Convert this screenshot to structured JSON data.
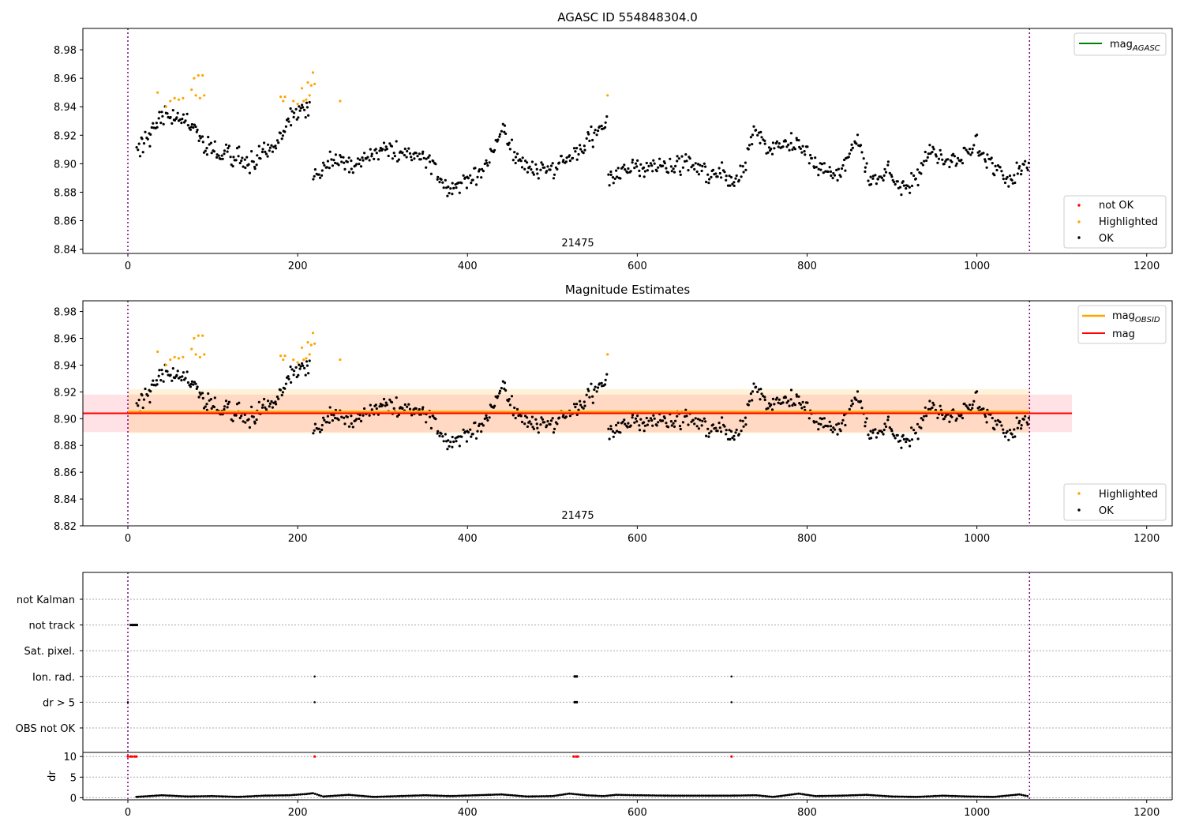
{
  "chart_data": [
    {
      "type": "scatter",
      "title": "AGASC ID 554848304.0",
      "xlabel": "",
      "ylabel": "",
      "xlim": [
        -53,
        1230
      ],
      "ylim": [
        8.837,
        8.995
      ],
      "xticks": [
        0,
        200,
        400,
        600,
        800,
        1000,
        1200
      ],
      "xtick_labels": [
        "0",
        "200",
        "400",
        "600",
        "800",
        "1000",
        "1200"
      ],
      "yticks": [
        8.84,
        8.86,
        8.88,
        8.9,
        8.92,
        8.94,
        8.96,
        8.98
      ],
      "ytick_labels": [
        "8.84",
        "8.86",
        "8.88",
        "8.90",
        "8.92",
        "8.94",
        "8.96",
        "8.98"
      ],
      "vlines": [
        0,
        1062
      ],
      "obsid_label": {
        "x": 530,
        "text": "21475"
      },
      "legend_upper": [
        {
          "label": "mag",
          "sub": "AGASC",
          "color": "#008000",
          "kind": "line"
        }
      ],
      "legend_lower": [
        {
          "label": "not OK",
          "color": "#ff0000",
          "kind": "dot"
        },
        {
          "label": "Highlighted",
          "color": "#ffa500",
          "kind": "dot"
        },
        {
          "label": "OK",
          "color": "#000000",
          "kind": "dot"
        }
      ],
      "series": [
        {
          "name": "OK",
          "color": "#000000",
          "segments": [
            {
              "x_range": [
                10,
                215
              ],
              "knots": [
                [
                  10,
                  8.912
                ],
                [
                  25,
                  8.918
                ],
                [
                  40,
                  8.935
                ],
                [
                  55,
                  8.934
                ],
                [
                  70,
                  8.928
                ],
                [
                  85,
                  8.918
                ],
                [
                  100,
                  8.912
                ],
                [
                  120,
                  8.905
                ],
                [
                  140,
                  8.902
                ],
                [
                  160,
                  8.906
                ],
                [
                  175,
                  8.912
                ],
                [
                  190,
                  8.932
                ],
                [
                  205,
                  8.938
                ],
                [
                  215,
                  8.94
                ]
              ],
              "noise": 0.005,
              "n": 160
            },
            {
              "x_range": [
                218,
                565
              ],
              "knots": [
                [
                  218,
                  8.888
                ],
                [
                  240,
                  8.903
                ],
                [
                  270,
                  8.899
                ],
                [
                  300,
                  8.913
                ],
                [
                  330,
                  8.905
                ],
                [
                  355,
                  8.905
                ],
                [
                  375,
                  8.882
                ],
                [
                  395,
                  8.884
                ],
                [
                  420,
                  8.896
                ],
                [
                  440,
                  8.923
                ],
                [
                  460,
                  8.903
                ],
                [
                  480,
                  8.895
                ],
                [
                  500,
                  8.897
                ],
                [
                  520,
                  8.904
                ],
                [
                  540,
                  8.914
                ],
                [
                  565,
                  8.927
                ]
              ],
              "noise": 0.005,
              "n": 260
            },
            {
              "x_range": [
                565,
                1062
              ],
              "knots": [
                [
                  565,
                  8.887
                ],
                [
                  590,
                  8.897
                ],
                [
                  620,
                  8.899
                ],
                [
                  650,
                  8.901
                ],
                [
                  680,
                  8.895
                ],
                [
                  700,
                  8.892
                ],
                [
                  720,
                  8.888
                ],
                [
                  740,
                  8.925
                ],
                [
                  755,
                  8.91
                ],
                [
                  775,
                  8.916
                ],
                [
                  790,
                  8.913
                ],
                [
                  820,
                  8.893
                ],
                [
                  840,
                  8.894
                ],
                [
                  860,
                  8.917
                ],
                [
                  875,
                  8.886
                ],
                [
                  895,
                  8.896
                ],
                [
                  910,
                  8.882
                ],
                [
                  930,
                  8.889
                ],
                [
                  945,
                  8.913
                ],
                [
                  960,
                  8.901
                ],
                [
                  980,
                  8.905
                ],
                [
                  1000,
                  8.912
                ],
                [
                  1020,
                  8.898
                ],
                [
                  1035,
                  8.888
                ],
                [
                  1050,
                  8.896
                ],
                [
                  1062,
                  8.898
                ]
              ],
              "noise": 0.005,
              "n": 370
            }
          ]
        },
        {
          "name": "Highlighted",
          "color": "#ffa500",
          "points": [
            [
              35,
              8.95
            ],
            [
              45,
              8.94
            ],
            [
              50,
              8.944
            ],
            [
              55,
              8.946
            ],
            [
              60,
              8.945
            ],
            [
              65,
              8.946
            ],
            [
              75,
              8.952
            ],
            [
              78,
              8.96
            ],
            [
              80,
              8.948
            ],
            [
              83,
              8.962
            ],
            [
              85,
              8.946
            ],
            [
              88,
              8.962
            ],
            [
              90,
              8.948
            ],
            [
              180,
              8.947
            ],
            [
              183,
              8.944
            ],
            [
              185,
              8.947
            ],
            [
              195,
              8.944
            ],
            [
              200,
              8.942
            ],
            [
              205,
              8.953
            ],
            [
              207,
              8.944
            ],
            [
              210,
              8.945
            ],
            [
              212,
              8.957
            ],
            [
              214,
              8.948
            ],
            [
              216,
              8.955
            ],
            [
              218,
              8.964
            ],
            [
              220,
              8.956
            ],
            [
              250,
              8.944
            ],
            [
              565,
              8.948
            ]
          ]
        }
      ]
    },
    {
      "type": "scatter",
      "title": "Magnitude Estimates",
      "xlabel": "",
      "ylabel": "",
      "xlim": [
        -53,
        1230
      ],
      "ylim": [
        8.82,
        8.988
      ],
      "xticks": [
        0,
        200,
        400,
        600,
        800,
        1000,
        1200
      ],
      "xtick_labels": [
        "0",
        "200",
        "400",
        "600",
        "800",
        "1000",
        "1200"
      ],
      "yticks": [
        8.82,
        8.84,
        8.86,
        8.88,
        8.9,
        8.92,
        8.94,
        8.96,
        8.98
      ],
      "ytick_labels": [
        "8.82",
        "8.84",
        "8.86",
        "8.88",
        "8.90",
        "8.92",
        "8.94",
        "8.96",
        "8.98"
      ],
      "vlines": [
        0,
        1062
      ],
      "obsid_label": {
        "x": 530,
        "text": "21475"
      },
      "legend_upper": [
        {
          "label": "mag",
          "sub": "OBSID",
          "color": "#ffa500",
          "kind": "line"
        },
        {
          "label": "mag",
          "sub": "",
          "color": "#ff0000",
          "kind": "line"
        }
      ],
      "legend_lower": [
        {
          "label": "Highlighted",
          "color": "#ffa500",
          "kind": "dot"
        },
        {
          "label": "OK",
          "color": "#000000",
          "kind": "dot"
        }
      ],
      "bands": [
        {
          "x": [
            -53,
            1112
          ],
          "y": [
            8.89,
            8.918
          ],
          "color": "#ffb6c1",
          "opacity": 0.4
        },
        {
          "x": [
            0,
            1062
          ],
          "y": [
            8.889,
            8.922
          ],
          "color": "#ffa500",
          "opacity": 0.15
        }
      ],
      "lines": [
        {
          "name": "mag OBSID",
          "x": [
            0,
            1062
          ],
          "y": 8.905,
          "color": "#ffa500",
          "width": 3
        },
        {
          "name": "mag",
          "x": [
            -53,
            1112
          ],
          "y": 8.904,
          "color": "#ff0000",
          "width": 2
        }
      ],
      "series": [
        {
          "name": "OK",
          "color": "#000000",
          "same_as_chart": 0
        },
        {
          "name": "Highlighted",
          "color": "#ffa500",
          "same_as_chart": 0
        }
      ]
    },
    {
      "type": "scatter",
      "title": "",
      "xlim": [
        -53,
        1230
      ],
      "xticks": [
        0,
        200,
        400,
        600,
        800,
        1000,
        1200
      ],
      "xtick_labels": [
        "0",
        "200",
        "400",
        "600",
        "800",
        "1000",
        "1200"
      ],
      "vlines": [
        0,
        1062
      ],
      "flag_rows": [
        "not Kalman",
        "not track",
        "Sat. pixel.",
        "Ion. rad.",
        "dr > 5",
        "OBS not OK"
      ],
      "flag_points": {
        "not track": [
          [
            2,
            12
          ]
        ],
        "Ion. rad.": [
          [
            220,
            220
          ],
          [
            525,
            530
          ],
          [
            711,
            711
          ]
        ],
        "dr > 5": [
          [
            0,
            0
          ],
          [
            220,
            220
          ],
          [
            525,
            530
          ],
          [
            711,
            711
          ]
        ]
      },
      "dr_panel": {
        "ylabel": "dr",
        "ylim": [
          -0.5,
          11
        ],
        "yticks": [
          0,
          5,
          10
        ],
        "ytick_labels": [
          "0",
          "5",
          "10"
        ],
        "red_points": [
          [
            0,
            10
          ],
          [
            3,
            10
          ],
          [
            5,
            10
          ],
          [
            8,
            10
          ],
          [
            10,
            10
          ],
          [
            220,
            10
          ],
          [
            525,
            10
          ],
          [
            528,
            10
          ],
          [
            530,
            10
          ],
          [
            711,
            10
          ]
        ],
        "trace": [
          [
            10,
            0.2
          ],
          [
            40,
            0.6
          ],
          [
            70,
            0.3
          ],
          [
            100,
            0.4
          ],
          [
            130,
            0.2
          ],
          [
            160,
            0.5
          ],
          [
            190,
            0.6
          ],
          [
            210,
            0.9
          ],
          [
            218,
            1.1
          ],
          [
            230,
            0.3
          ],
          [
            260,
            0.7
          ],
          [
            290,
            0.2
          ],
          [
            320,
            0.4
          ],
          [
            350,
            0.6
          ],
          [
            380,
            0.4
          ],
          [
            410,
            0.6
          ],
          [
            440,
            0.8
          ],
          [
            470,
            0.3
          ],
          [
            500,
            0.4
          ],
          [
            520,
            1.0
          ],
          [
            540,
            0.6
          ],
          [
            560,
            0.4
          ],
          [
            575,
            0.7
          ],
          [
            600,
            0.6
          ],
          [
            640,
            0.5
          ],
          [
            680,
            0.5
          ],
          [
            710,
            0.5
          ],
          [
            740,
            0.6
          ],
          [
            760,
            0.2
          ],
          [
            790,
            1.0
          ],
          [
            810,
            0.4
          ],
          [
            840,
            0.5
          ],
          [
            870,
            0.7
          ],
          [
            900,
            0.3
          ],
          [
            930,
            0.2
          ],
          [
            960,
            0.5
          ],
          [
            990,
            0.3
          ],
          [
            1020,
            0.2
          ],
          [
            1050,
            0.8
          ],
          [
            1062,
            0.3
          ]
        ]
      }
    }
  ]
}
